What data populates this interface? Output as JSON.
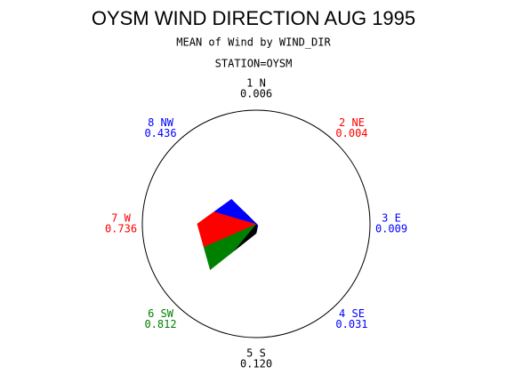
{
  "chart_data": {
    "type": "star",
    "title": "OYSM WIND DIRECTION AUG 1995",
    "subtitle": "MEAN of Wind by WIND_DIR",
    "group_label": "STATION=OYSM",
    "categories": [
      "1 N",
      "2 NE",
      "3 E",
      "4 SE",
      "5 S",
      "6 SW",
      "7 W",
      "8 NW"
    ],
    "values": [
      0.006,
      0.004,
      0.009,
      0.031,
      0.12,
      0.812,
      0.736,
      0.436
    ],
    "value_labels": [
      "0.006",
      "0.004",
      "0.009",
      "0.031",
      "0.120",
      "0.812",
      "0.736",
      "0.436"
    ],
    "colors": [
      "#000000",
      "#ff0000",
      "#0000ff",
      "#0000ff",
      "#000000",
      "#008000",
      "#ff0000",
      "#0000ff"
    ]
  }
}
